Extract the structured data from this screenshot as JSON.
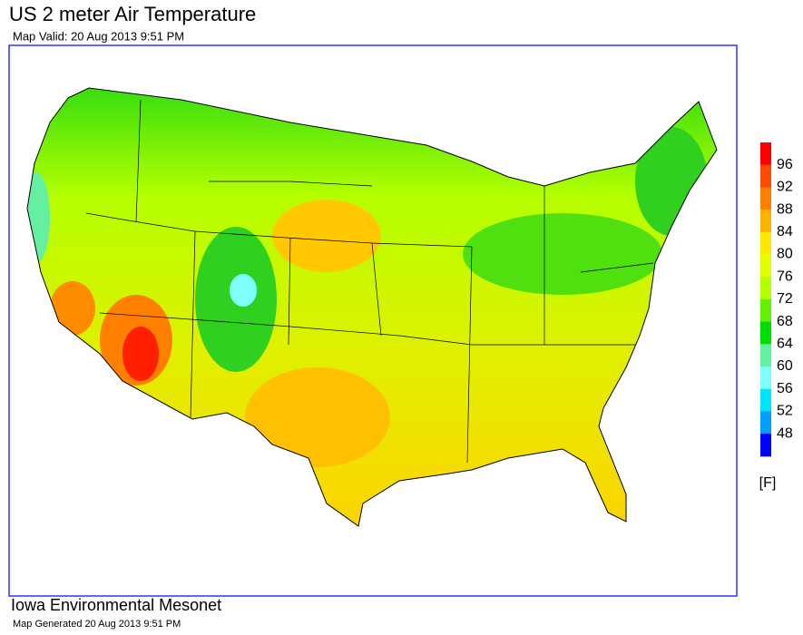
{
  "header": {
    "title": "US 2 meter Air Temperature",
    "subtitle": "Map Valid: 20 Aug 2013 9:51 PM"
  },
  "legend": {
    "labels": [
      "96",
      "92",
      "88",
      "84",
      "80",
      "76",
      "72",
      "68",
      "64",
      "60",
      "56",
      "52",
      "48"
    ],
    "colors": [
      "#ff0000",
      "#ff4a00",
      "#ff8000",
      "#ffb400",
      "#ffe600",
      "#e6ff00",
      "#b4ff00",
      "#64f000",
      "#00dc00",
      "#64f0a0",
      "#80ffff",
      "#00e6ff",
      "#00a0ff",
      "#0000ff"
    ],
    "unit": "[F]"
  },
  "footer": {
    "title": "Iowa Environmental Mesonet",
    "subtitle": "Map Generated 20 Aug 2013 9:51 PM"
  }
}
